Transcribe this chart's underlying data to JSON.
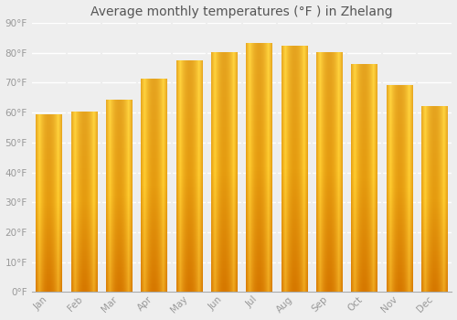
{
  "title": "Average monthly temperatures (°F ) in Zhelang",
  "months": [
    "Jan",
    "Feb",
    "Mar",
    "Apr",
    "May",
    "Jun",
    "Jul",
    "Aug",
    "Sep",
    "Oct",
    "Nov",
    "Dec"
  ],
  "values": [
    59,
    60,
    64,
    71,
    77,
    80,
    83,
    82,
    80,
    76,
    69,
    62
  ],
  "bar_color_main": "#F5A800",
  "bar_color_light": "#FFD040",
  "bar_color_dark": "#E08800",
  "ylim": [
    0,
    90
  ],
  "yticks": [
    0,
    10,
    20,
    30,
    40,
    50,
    60,
    70,
    80,
    90
  ],
  "ytick_labels": [
    "0°F",
    "10°F",
    "20°F",
    "30°F",
    "40°F",
    "50°F",
    "60°F",
    "70°F",
    "80°F",
    "90°F"
  ],
  "bg_color": "#eeeeee",
  "grid_color": "#ffffff",
  "font_color": "#999999",
  "title_color": "#555555",
  "title_fontsize": 10,
  "tick_fontsize": 7.5,
  "bar_width": 0.75
}
